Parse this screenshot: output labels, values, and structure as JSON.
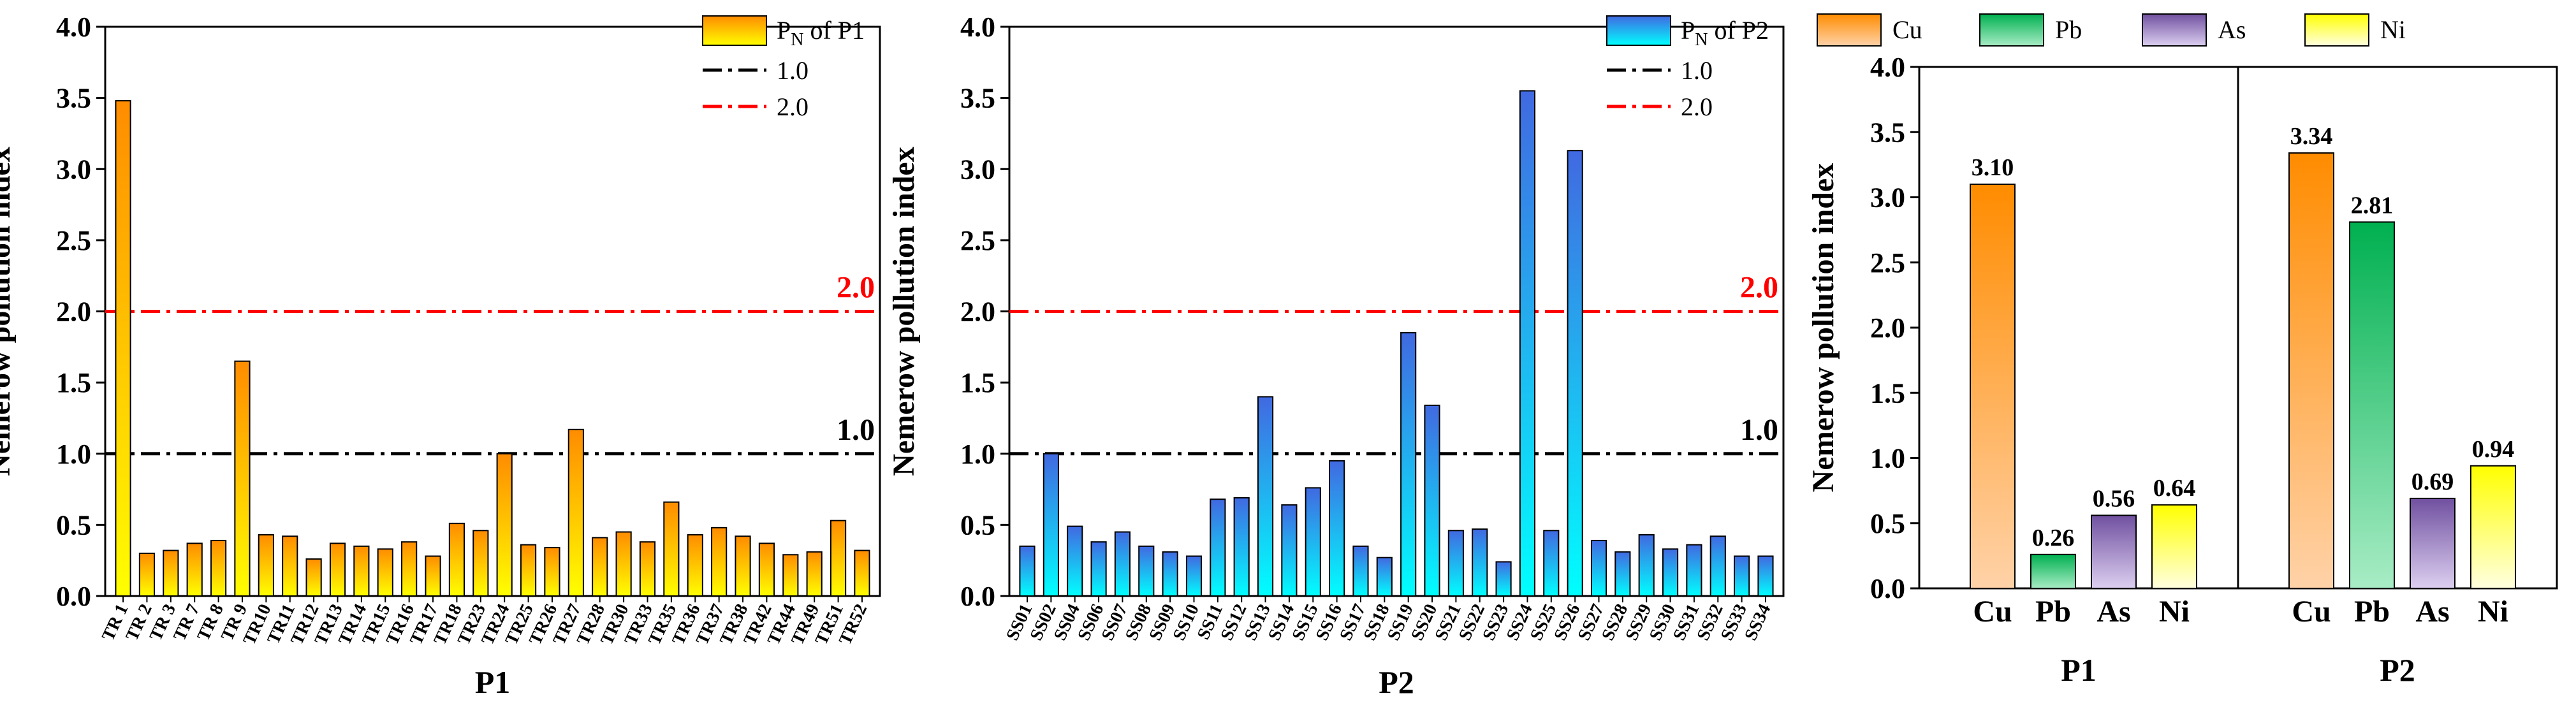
{
  "chart_data": [
    {
      "type": "bar",
      "panel": "left",
      "ylabel": "Nemerow pollution index",
      "xlabel": "P1",
      "ylim": [
        0,
        4.0
      ],
      "yticks": [
        0.0,
        0.5,
        1.0,
        1.5,
        2.0,
        2.5,
        3.0,
        3.5,
        4.0
      ],
      "ytick_labels": [
        "0.0",
        "0.5",
        "1.0",
        "1.5",
        "2.0",
        "2.5",
        "3.0",
        "3.5",
        "4.0"
      ],
      "categories": [
        "TR 1",
        "TR 2",
        "TR 3",
        "TR 7",
        "TR 8",
        "TR 9",
        "TR10",
        "TR11",
        "TR12",
        "TR13",
        "TR14",
        "TR15",
        "TR16",
        "TR17",
        "TR18",
        "TR23",
        "TR24",
        "TR25",
        "TR26",
        "TR27",
        "TR28",
        "TR30",
        "TR33",
        "TR35",
        "TR36",
        "TR37",
        "TR38",
        "TR42",
        "TR44",
        "TR49",
        "TR51",
        "TR52"
      ],
      "values": [
        3.48,
        0.3,
        0.32,
        0.37,
        0.39,
        1.65,
        0.43,
        0.42,
        0.26,
        0.37,
        0.35,
        0.33,
        0.38,
        0.28,
        0.51,
        0.46,
        1.0,
        0.36,
        0.34,
        1.17,
        0.41,
        0.45,
        0.38,
        0.66,
        0.43,
        0.48,
        0.42,
        0.37,
        0.29,
        0.31,
        0.53,
        0.32
      ],
      "gradient": [
        "#ff8c00",
        "#ffff00"
      ],
      "legend": {
        "prefix": "P",
        "sub": "N",
        "suffix": " of P1"
      },
      "ref_lines": [
        {
          "value": 1.0,
          "label": "1.0",
          "color": "#000000"
        },
        {
          "value": 2.0,
          "label": "2.0",
          "color": "#ff0000"
        }
      ]
    },
    {
      "type": "bar",
      "panel": "middle",
      "ylabel": "Nemerow pollution index",
      "xlabel": "P2",
      "ylim": [
        0,
        4.0
      ],
      "yticks": [
        0.0,
        0.5,
        1.0,
        1.5,
        2.0,
        2.5,
        3.0,
        3.5,
        4.0
      ],
      "ytick_labels": [
        "0.0",
        "0.5",
        "1.0",
        "1.5",
        "2.0",
        "2.5",
        "3.0",
        "3.5",
        "4.0"
      ],
      "categories": [
        "SS01",
        "SS02",
        "SS04",
        "SS06",
        "SS07",
        "SS08",
        "SS09",
        "SS10",
        "SS11",
        "SS12",
        "SS13",
        "SS14",
        "SS15",
        "SS16",
        "SS17",
        "SS18",
        "SS19",
        "SS20",
        "SS21",
        "SS22",
        "SS23",
        "SS24",
        "SS25",
        "SS26",
        "SS27",
        "SS28",
        "SS29",
        "SS30",
        "SS31",
        "SS32",
        "SS33",
        "SS34"
      ],
      "values": [
        0.35,
        1.0,
        0.49,
        0.38,
        0.45,
        0.35,
        0.31,
        0.28,
        0.68,
        0.69,
        1.4,
        0.64,
        0.76,
        0.95,
        0.35,
        0.27,
        1.85,
        1.34,
        0.46,
        0.47,
        0.24,
        3.55,
        0.46,
        3.13,
        0.39,
        0.31,
        0.43,
        0.33,
        0.36,
        0.42,
        0.28,
        0.28
      ],
      "gradient": [
        "#4169e1",
        "#00ffff"
      ],
      "legend": {
        "prefix": "P",
        "sub": "N",
        "suffix": " of P2"
      },
      "ref_lines": [
        {
          "value": 1.0,
          "label": "1.0",
          "color": "#000000"
        },
        {
          "value": 2.0,
          "label": "2.0",
          "color": "#ff0000"
        }
      ]
    },
    {
      "type": "bar",
      "panel": "right",
      "ylabel": "Nemerow pollution index",
      "ylim": [
        0,
        4.0
      ],
      "yticks": [
        0.0,
        0.5,
        1.0,
        1.5,
        2.0,
        2.5,
        3.0,
        3.5,
        4.0
      ],
      "ytick_labels": [
        "0.0",
        "0.5",
        "1.0",
        "1.5",
        "2.0",
        "2.5",
        "3.0",
        "3.5",
        "4.0"
      ],
      "groups": [
        "P1",
        "P2"
      ],
      "categories": [
        "Cu",
        "Pb",
        "As",
        "Ni"
      ],
      "series_colors": {
        "Cu": [
          "#ff8c00",
          "#ffd2a8"
        ],
        "Pb": [
          "#00b050",
          "#a8ecc5"
        ],
        "As": [
          "#7050a0",
          "#dccff0"
        ],
        "Ni": [
          "#ffff00",
          "#ffffe0"
        ]
      },
      "series": [
        {
          "group": "P1",
          "values": [
            3.1,
            0.26,
            0.56,
            0.64
          ],
          "labels": [
            "3.10",
            "0.26",
            "0.56",
            "0.64"
          ]
        },
        {
          "group": "P2",
          "values": [
            3.34,
            2.81,
            0.69,
            0.94
          ],
          "labels": [
            "3.34",
            "2.81",
            "0.69",
            "0.94"
          ]
        }
      ],
      "legend": [
        "Cu",
        "Pb",
        "As",
        "Ni"
      ]
    }
  ]
}
